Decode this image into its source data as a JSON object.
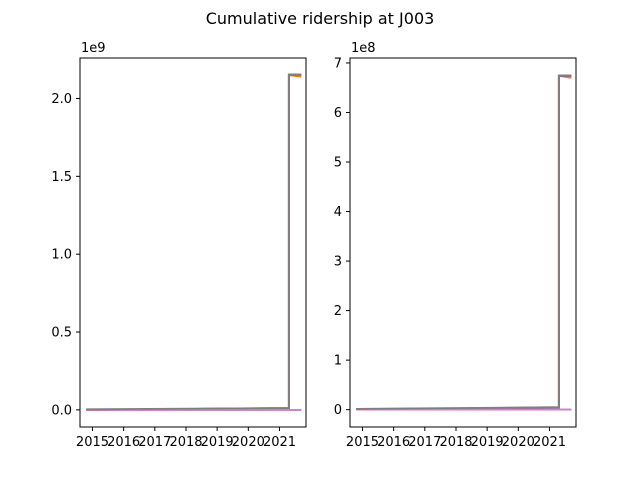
{
  "figure": {
    "title": "Cumulative ridership at J003"
  },
  "chart_data": [
    {
      "type": "line",
      "title": "",
      "xlabel": "",
      "ylabel": "",
      "xlim": [
        2014.6,
        2021.85
      ],
      "ylim": [
        -110000000.0,
        2260000000.0
      ],
      "offset_text": "1e9",
      "xticks": [
        2015,
        2016,
        2017,
        2018,
        2019,
        2020,
        2021
      ],
      "xtick_labels": [
        "2015",
        "2016",
        "2017",
        "2018",
        "2019",
        "2020",
        "2021"
      ],
      "yticks": [
        0,
        500000000.0,
        1000000000.0,
        1500000000.0,
        2000000000.0
      ],
      "ytick_labels": [
        "0.0",
        "0.5",
        "1.0",
        "1.5",
        "2.0"
      ],
      "series": [
        {
          "color": "#1f77b4",
          "x": [
            2014.8,
            2021.3,
            2021.3,
            2021.7
          ],
          "y": [
            0,
            0,
            0,
            0
          ]
        },
        {
          "color": "#ff7f0e",
          "x": [
            2014.8,
            2021.3,
            2021.3,
            2021.7
          ],
          "y": [
            0,
            12000000.0,
            2150000000.0,
            2140000000.0
          ]
        },
        {
          "color": "#2ca02c",
          "x": [
            2014.8,
            2021.3,
            2021.3,
            2021.7
          ],
          "y": [
            0,
            10000000.0,
            2150000000.0,
            2150000000.0
          ]
        },
        {
          "color": "#d62728",
          "x": [
            2014.8,
            2021.3,
            2021.3,
            2021.7
          ],
          "y": [
            0,
            11000000.0,
            2150000000.0,
            2150000000.0
          ]
        },
        {
          "color": "#9467bd",
          "x": [
            2014.8,
            2021.3,
            2021.3,
            2021.7
          ],
          "y": [
            0,
            10500000.0,
            2150000000.0,
            2150000000.0
          ]
        },
        {
          "color": "#e377c2",
          "x": [
            2014.8,
            2021.7
          ],
          "y": [
            0,
            0
          ]
        },
        {
          "color": "#7f7f7f",
          "x": [
            2014.8,
            2021.3,
            2021.3,
            2021.7
          ],
          "y": [
            4000000.0,
            12000000.0,
            2155000000.0,
            2155000000.0
          ]
        }
      ]
    },
    {
      "type": "line",
      "title": "",
      "xlabel": "",
      "ylabel": "",
      "xlim": [
        2014.6,
        2021.85
      ],
      "ylim": [
        -35000000.0,
        710000000.0
      ],
      "offset_text": "1e8",
      "xticks": [
        2015,
        2016,
        2017,
        2018,
        2019,
        2020,
        2021
      ],
      "xtick_labels": [
        "2015",
        "2016",
        "2017",
        "2018",
        "2019",
        "2020",
        "2021"
      ],
      "yticks": [
        0,
        100000000.0,
        200000000.0,
        300000000.0,
        400000000.0,
        500000000.0,
        600000000.0,
        700000000.0
      ],
      "ytick_labels": [
        "0",
        "1",
        "2",
        "3",
        "4",
        "5",
        "6",
        "7"
      ],
      "series": [
        {
          "color": "#1f77b4",
          "x": [
            2014.8,
            2021.3,
            2021.3,
            2021.7
          ],
          "y": [
            0,
            0,
            0,
            0
          ]
        },
        {
          "color": "#ff7f0e",
          "x": [
            2014.8,
            2021.3,
            2021.3,
            2021.7
          ],
          "y": [
            0,
            5000000.0,
            674000000.0,
            670000000.0
          ]
        },
        {
          "color": "#2ca02c",
          "x": [
            2014.8,
            2021.3,
            2021.3,
            2021.7
          ],
          "y": [
            0,
            4000000.0,
            674000000.0,
            674000000.0
          ]
        },
        {
          "color": "#d62728",
          "x": [
            2014.8,
            2021.3,
            2021.3,
            2021.7
          ],
          "y": [
            0,
            4500000.0,
            674000000.0,
            674000000.0
          ]
        },
        {
          "color": "#9467bd",
          "x": [
            2014.8,
            2021.3,
            2021.3,
            2021.7
          ],
          "y": [
            0,
            4200000.0,
            674000000.0,
            674000000.0
          ]
        },
        {
          "color": "#e377c2",
          "x": [
            2014.8,
            2021.7
          ],
          "y": [
            0,
            0
          ]
        },
        {
          "color": "#7f7f7f",
          "x": [
            2014.8,
            2021.3,
            2021.3,
            2021.7
          ],
          "y": [
            1500000.0,
            5000000.0,
            675000000.0,
            675000000.0
          ]
        }
      ]
    }
  ]
}
